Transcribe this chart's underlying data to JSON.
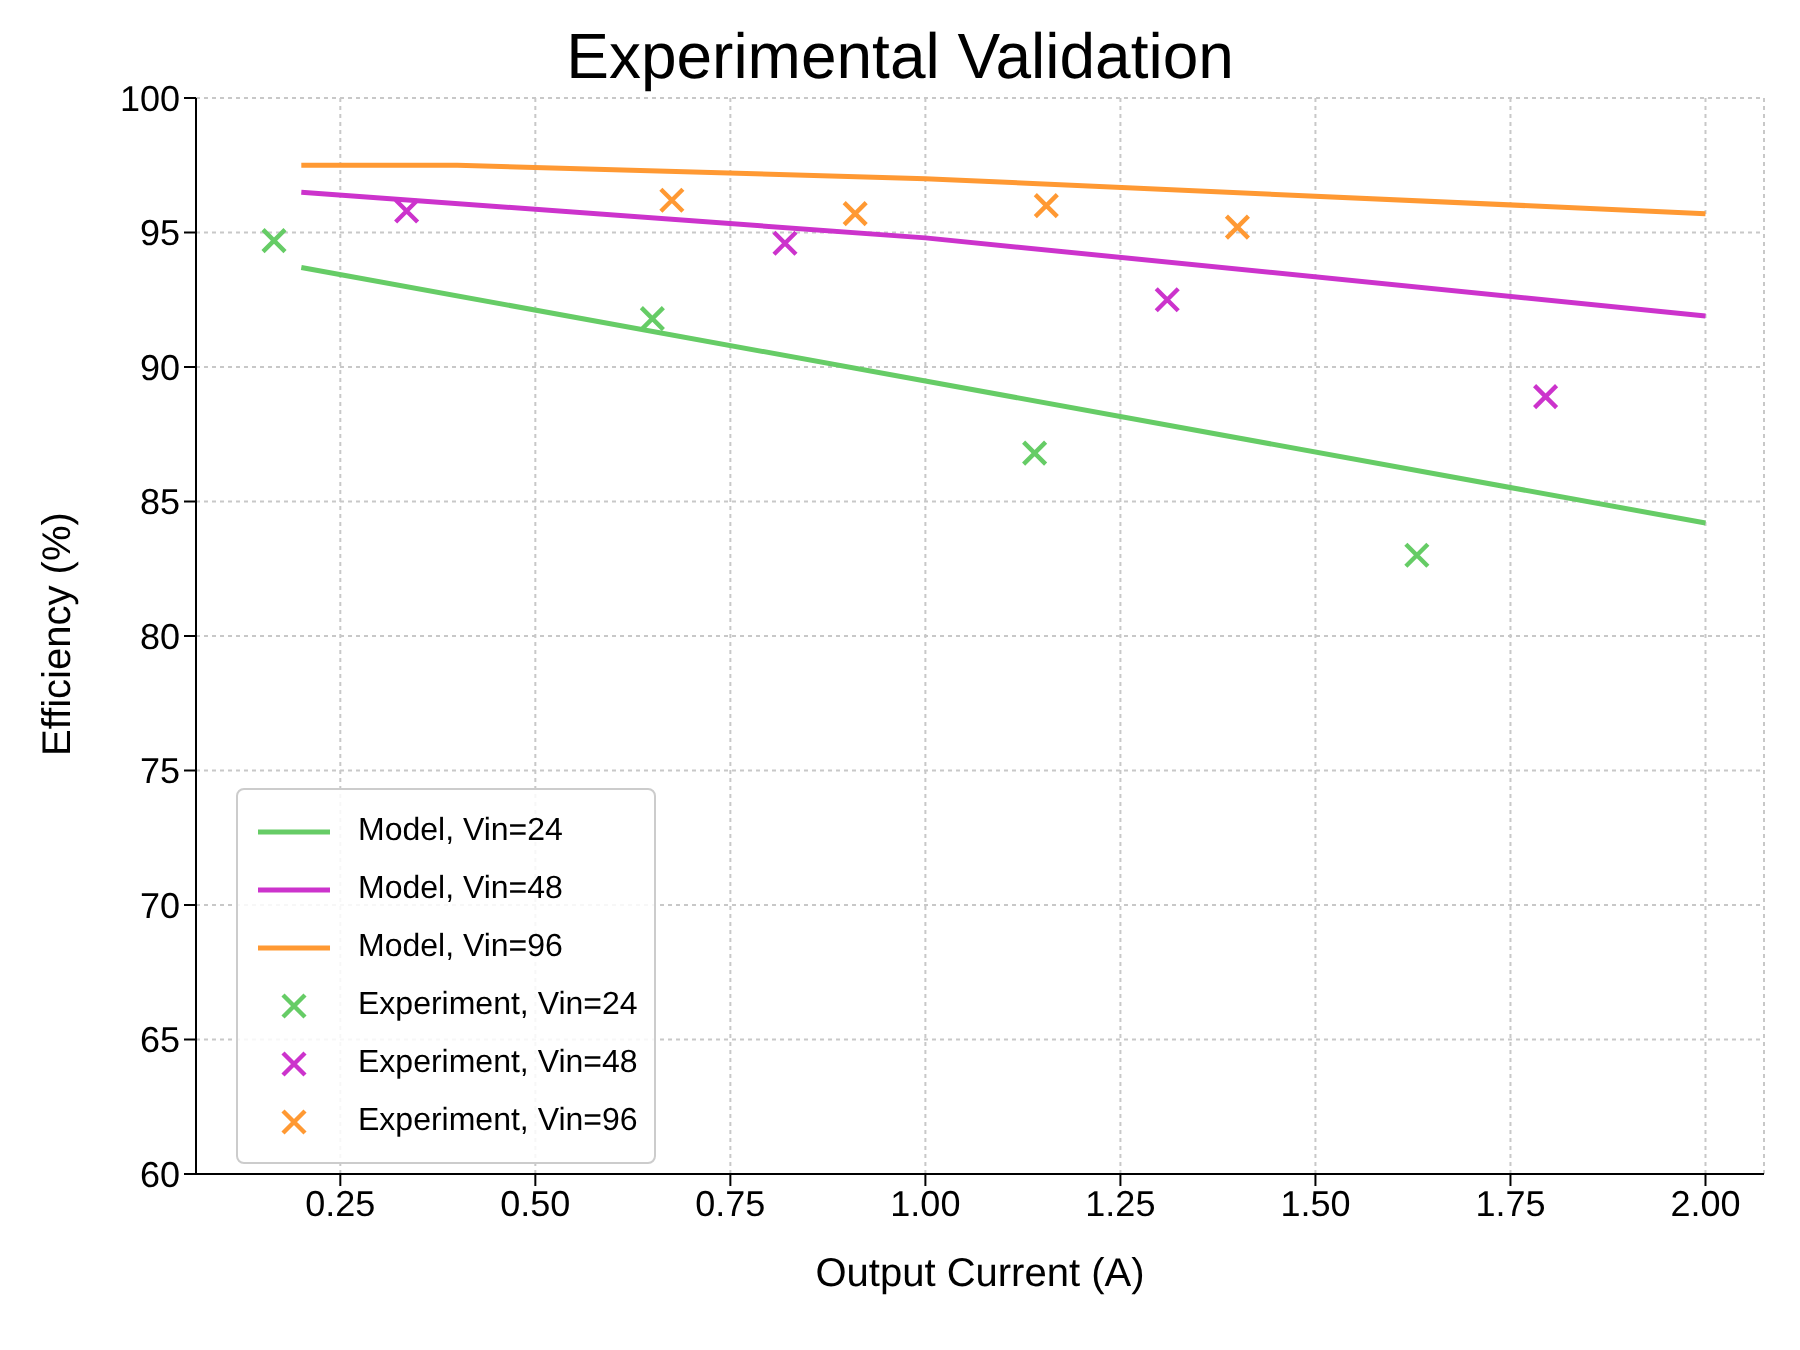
{
  "chart_data": {
    "type": "line",
    "title": "Experimental Validation",
    "xlabel": "Output Current (A)",
    "ylabel": "Efficiency (%)",
    "xlim": [
      0.065,
      2.075
    ],
    "ylim": [
      60,
      100
    ],
    "xticks": [
      {
        "value": 0.25,
        "label": "0.25"
      },
      {
        "value": 0.5,
        "label": "0.50"
      },
      {
        "value": 0.75,
        "label": "0.75"
      },
      {
        "value": 1,
        "label": "1.00"
      },
      {
        "value": 1.25,
        "label": "1.25"
      },
      {
        "value": 1.5,
        "label": "1.50"
      },
      {
        "value": 1.75,
        "label": "1.75"
      },
      {
        "value": 2,
        "label": "2.00"
      }
    ],
    "yticks": [
      60,
      65,
      70,
      75,
      80,
      85,
      90,
      95,
      100
    ],
    "grid": true,
    "legend": "bottom left",
    "series": [
      {
        "name": "Model, Vin=24",
        "color": "#66cc66",
        "marker": "none",
        "x": [
          0.2,
          2.0
        ],
        "values": [
          93.7,
          84.2
        ]
      },
      {
        "name": "Model, Vin=48",
        "color": "#cc33cc",
        "marker": "none",
        "x": [
          0.2,
          1.0,
          2.0
        ],
        "values": [
          96.5,
          94.8,
          91.9
        ]
      },
      {
        "name": "Model, Vin=96",
        "color": "#ff9933",
        "marker": "none",
        "x": [
          0.2,
          0.4,
          1.0,
          2.0
        ],
        "values": [
          97.5,
          97.5,
          97.0,
          95.7
        ]
      },
      {
        "name": "Experiment, Vin=24",
        "type": "scatter",
        "color": "#66cc66",
        "marker": "cross",
        "x": [
          0.165,
          0.65,
          1.14,
          1.63
        ],
        "values": [
          94.7,
          91.8,
          86.8,
          83.0
        ]
      },
      {
        "name": "Experiment, Vin=48",
        "type": "scatter",
        "color": "#cc33cc",
        "marker": "cross",
        "x": [
          0.335,
          0.82,
          1.31,
          1.795
        ],
        "values": [
          95.8,
          94.6,
          92.5,
          88.9
        ]
      },
      {
        "name": "Experiment, Vin=96",
        "type": "scatter",
        "color": "#ff9933",
        "marker": "cross",
        "x": [
          0.675,
          0.91,
          1.155,
          1.4
        ],
        "values": [
          96.2,
          95.7,
          96.0,
          95.2
        ]
      }
    ]
  }
}
